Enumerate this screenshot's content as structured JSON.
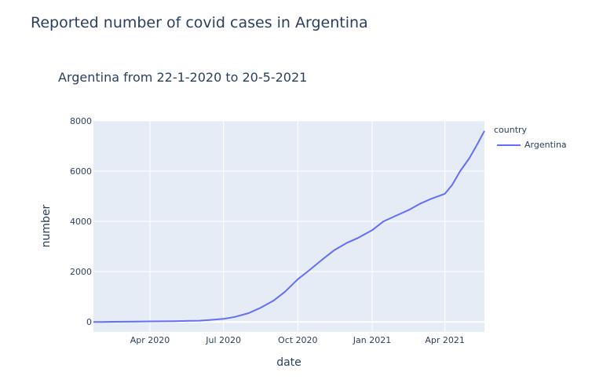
{
  "page": {
    "heading": "Reported number of covid cases in Argentina"
  },
  "chart_data": {
    "type": "line",
    "title": "Argentina from 22-1-2020 to 20-5-2021",
    "xlabel": "date",
    "ylabel": "number",
    "xlim": [
      "2020-01-22",
      "2021-05-20"
    ],
    "ylim": [
      -400,
      8000
    ],
    "x_ticks": [
      {
        "label": "Apr 2020",
        "date": "2020-04-01"
      },
      {
        "label": "Jul 2020",
        "date": "2020-07-01"
      },
      {
        "label": "Oct 2020",
        "date": "2020-10-01"
      },
      {
        "label": "Jan 2021",
        "date": "2021-01-01"
      },
      {
        "label": "Apr 2021",
        "date": "2021-04-01"
      }
    ],
    "y_ticks": [
      0,
      2000,
      4000,
      6000,
      8000
    ],
    "grid": true,
    "legend": {
      "title": "country",
      "position": "top-right"
    },
    "series": [
      {
        "name": "Argentina",
        "color": "#636efa",
        "points": [
          [
            "2020-01-22",
            0
          ],
          [
            "2020-02-01",
            0
          ],
          [
            "2020-02-15",
            5
          ],
          [
            "2020-03-01",
            10
          ],
          [
            "2020-03-15",
            15
          ],
          [
            "2020-04-01",
            20
          ],
          [
            "2020-04-15",
            25
          ],
          [
            "2020-05-01",
            30
          ],
          [
            "2020-05-15",
            40
          ],
          [
            "2020-06-01",
            50
          ],
          [
            "2020-06-15",
            80
          ],
          [
            "2020-07-01",
            120
          ],
          [
            "2020-07-15",
            200
          ],
          [
            "2020-08-01",
            350
          ],
          [
            "2020-08-15",
            550
          ],
          [
            "2020-09-01",
            850
          ],
          [
            "2020-09-15",
            1200
          ],
          [
            "2020-10-01",
            1700
          ],
          [
            "2020-10-15",
            2050
          ],
          [
            "2020-11-01",
            2500
          ],
          [
            "2020-11-15",
            2850
          ],
          [
            "2020-12-01",
            3150
          ],
          [
            "2020-12-15",
            3350
          ],
          [
            "2021-01-01",
            3650
          ],
          [
            "2021-01-15",
            4000
          ],
          [
            "2021-02-01",
            4250
          ],
          [
            "2021-02-15",
            4450
          ],
          [
            "2021-03-01",
            4700
          ],
          [
            "2021-03-15",
            4900
          ],
          [
            "2021-04-01",
            5100
          ],
          [
            "2021-04-10",
            5450
          ],
          [
            "2021-04-20",
            6000
          ],
          [
            "2021-05-01",
            6500
          ],
          [
            "2021-05-10",
            7000
          ],
          [
            "2021-05-20",
            7600
          ]
        ]
      }
    ]
  }
}
